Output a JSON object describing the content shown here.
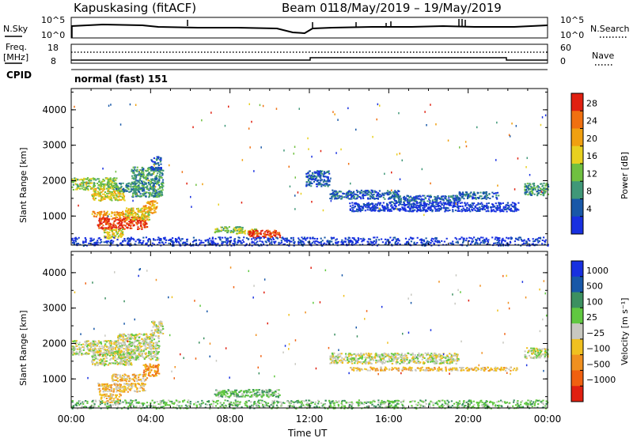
{
  "header": {
    "station": "Kapuskasing (fitACF)",
    "beam": "Beam 01",
    "date_range": "18/May/2019 – 19/May/2019"
  },
  "top_panel": {
    "left_label": "N.Sky",
    "left_ticks": [
      "10^5",
      "10^0"
    ],
    "right_ticks": [
      "10^5",
      "10^0"
    ],
    "right_label": "N.Search"
  },
  "freq_panel": {
    "left_label_1": "Freq.",
    "left_label_2": "[MHz]",
    "left_ticks": [
      "18",
      "8"
    ],
    "right_ticks": [
      "60",
      "0"
    ],
    "right_label": "Nave",
    "cpid_label": "CPID",
    "cpid_value": "normal (fast) 151"
  },
  "colors": {
    "velocity_gray": "#c8c8c0",
    "power_red": "#e02010",
    "power_blue": "#1830e0"
  },
  "chart_data": [
    {
      "type": "heatmap",
      "panel": "power",
      "ylabel": "Slant Range [km]",
      "yticks": [
        "1000",
        "2000",
        "3000",
        "4000"
      ],
      "ylim": [
        180,
        4600
      ],
      "xticks": [
        "00:00",
        "04:00",
        "08:00",
        "12:00",
        "16:00",
        "20:00",
        "00:00"
      ],
      "xlim_hours": [
        0,
        24
      ],
      "colorbar_label": "Power [dB]",
      "colorbar_ticks": [
        "28",
        "24",
        "20",
        "16",
        "12",
        "8",
        "4"
      ],
      "colorbar_colors": [
        "#e02010",
        "#f07010",
        "#f0a010",
        "#e8d020",
        "#70c040",
        "#409878",
        "#1858a8",
        "#1830e0"
      ],
      "blobs": [
        {
          "t0": 0.0,
          "t1": 2.3,
          "r0": 1750,
          "r1": 2100,
          "level": 4
        },
        {
          "t0": 1.0,
          "t1": 2.7,
          "r0": 1450,
          "r1": 1800,
          "level": 3
        },
        {
          "t0": 2.2,
          "t1": 3.6,
          "r0": 1700,
          "r1": 1950,
          "level": 5
        },
        {
          "t0": 3.0,
          "t1": 4.6,
          "r0": 1550,
          "r1": 2400,
          "level": 5
        },
        {
          "t0": 4.0,
          "t1": 4.5,
          "r0": 2300,
          "r1": 2700,
          "level": 6
        },
        {
          "t0": 3.6,
          "t1": 4.3,
          "r0": 1100,
          "r1": 1450,
          "level": 2
        },
        {
          "t0": 1.3,
          "t1": 3.8,
          "r0": 650,
          "r1": 1000,
          "level": 0
        },
        {
          "t0": 1.0,
          "t1": 3.0,
          "r0": 1000,
          "r1": 1150,
          "level": 2
        },
        {
          "t0": 2.7,
          "t1": 3.9,
          "r0": 900,
          "r1": 1250,
          "level": 3
        },
        {
          "t0": 1.6,
          "t1": 2.6,
          "r0": 380,
          "r1": 650,
          "level": 3
        },
        {
          "t0": 7.2,
          "t1": 8.6,
          "r0": 550,
          "r1": 720,
          "level": 4
        },
        {
          "t0": 8.2,
          "t1": 9.4,
          "r0": 520,
          "r1": 650,
          "level": 3
        },
        {
          "t0": 8.9,
          "t1": 10.5,
          "r0": 400,
          "r1": 620,
          "level": 0
        },
        {
          "t0": 13.0,
          "t1": 16.5,
          "r0": 1500,
          "r1": 1750,
          "level": 6
        },
        {
          "t0": 16.0,
          "t1": 19.6,
          "r0": 1400,
          "r1": 1600,
          "level": 6
        },
        {
          "t0": 19.5,
          "t1": 21.5,
          "r0": 1500,
          "r1": 1700,
          "level": 6
        },
        {
          "t0": 14.0,
          "t1": 22.5,
          "r0": 1150,
          "r1": 1400,
          "level": 7
        },
        {
          "t0": 22.8,
          "t1": 24.0,
          "r0": 1600,
          "r1": 1950,
          "level": 5
        },
        {
          "t0": 11.8,
          "t1": 13.0,
          "r0": 1850,
          "r1": 2300,
          "level": 6
        },
        {
          "t0": 0.0,
          "t1": 24.0,
          "r0": 180,
          "r1": 420,
          "level": 7
        }
      ]
    },
    {
      "type": "heatmap",
      "panel": "velocity",
      "ylabel": "Slant Range [km]",
      "yticks": [
        "1000",
        "2000",
        "3000",
        "4000"
      ],
      "ylim": [
        180,
        4600
      ],
      "xticks": [
        "00:00",
        "04:00",
        "08:00",
        "12:00",
        "16:00",
        "20:00",
        "00:00"
      ],
      "xlabel": "Time UT",
      "xlim_hours": [
        0,
        24
      ],
      "colorbar_label": "Velocity [m s⁻¹]",
      "colorbar_ticks": [
        "1000",
        "500",
        "100",
        "25",
        "−25",
        "−100",
        "−500",
        "−1000"
      ],
      "colorbar_colors": [
        "#1830e0",
        "#1858a8",
        "#3c9060",
        "#60c840",
        "#c8c8c0",
        "#f0c020",
        "#f09020",
        "#f06010",
        "#e02010"
      ],
      "blobs": [
        {
          "t0": 0.0,
          "t1": 2.4,
          "r0": 1700,
          "r1": 2100,
          "level": 4
        },
        {
          "t0": 1.0,
          "t1": 3.0,
          "r0": 1400,
          "r1": 1800,
          "level": 4
        },
        {
          "t0": 2.3,
          "t1": 4.4,
          "r0": 1550,
          "r1": 2300,
          "level": 4
        },
        {
          "t0": 4.0,
          "t1": 4.6,
          "r0": 2300,
          "r1": 2650,
          "level": 4
        },
        {
          "t0": 3.6,
          "t1": 4.4,
          "r0": 1100,
          "r1": 1450,
          "level": 6
        },
        {
          "t0": 1.3,
          "t1": 3.7,
          "r0": 650,
          "r1": 900,
          "level": 5
        },
        {
          "t0": 2.0,
          "t1": 3.8,
          "r0": 950,
          "r1": 1150,
          "level": 5
        },
        {
          "t0": 1.4,
          "t1": 2.5,
          "r0": 350,
          "r1": 600,
          "level": 5
        },
        {
          "t0": 7.2,
          "t1": 10.5,
          "r0": 500,
          "r1": 720,
          "level": 3
        },
        {
          "t0": 13.0,
          "t1": 19.5,
          "r0": 1450,
          "r1": 1750,
          "level": 4
        },
        {
          "t0": 14.0,
          "t1": 22.5,
          "r0": 1250,
          "r1": 1350,
          "level": 5
        },
        {
          "t0": 22.8,
          "t1": 24.0,
          "r0": 1600,
          "r1": 1900,
          "level": 4
        },
        {
          "t0": 0.0,
          "t1": 24.0,
          "r0": 180,
          "r1": 420,
          "level": 3
        }
      ]
    }
  ]
}
